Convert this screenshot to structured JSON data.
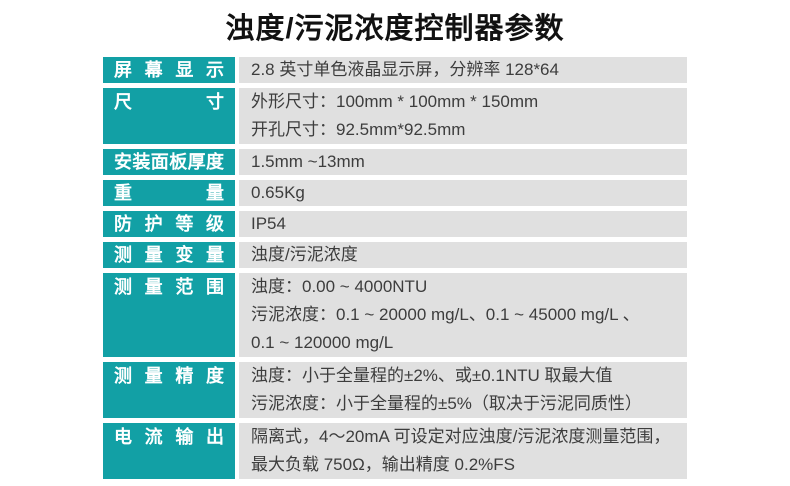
{
  "page": {
    "title": "浊度/污泥浓度控制器参数"
  },
  "colors": {
    "accent_teal": "#12a0a5",
    "cell_background_gray": "#e0e0e0",
    "value_text": "#3d3d3d"
  },
  "table": {
    "rows": [
      {
        "label": "屏幕显示",
        "lines": [
          "2.8 英寸单色液晶显示屏，分辨率 128*64"
        ]
      },
      {
        "label": "尺寸",
        "lines": [
          "外形尺寸：100mm * 100mm * 150mm",
          "开孔尺寸：92.5mm*92.5mm"
        ]
      },
      {
        "label": "安装面板厚度",
        "lines": [
          "1.5mm ~13mm"
        ]
      },
      {
        "label": "重量",
        "lines": [
          "0.65Kg"
        ]
      },
      {
        "label": "防护等级",
        "lines": [
          "IP54"
        ]
      },
      {
        "label": "测量变量",
        "lines": [
          "浊度/污泥浓度"
        ]
      },
      {
        "label": "测量范围",
        "lines": [
          "浊度：0.00 ~ 4000NTU",
          "污泥浓度：0.1 ~ 20000 mg/L、0.1 ~ 45000 mg/L 、",
          "0.1 ~ 120000 mg/L"
        ]
      },
      {
        "label": "测量精度",
        "lines": [
          "浊度：小于全量程的±2%、或±0.1NTU 取最大值",
          "污泥浓度：小于全量程的±5%（取决于污泥同质性）"
        ]
      },
      {
        "label": "电流输出",
        "lines": [
          "隔离式，4～20mA 可设定对应浊度/污泥浓度测量范围，",
          "最大负载 750Ω，输出精度 0.2%FS"
        ]
      }
    ]
  }
}
